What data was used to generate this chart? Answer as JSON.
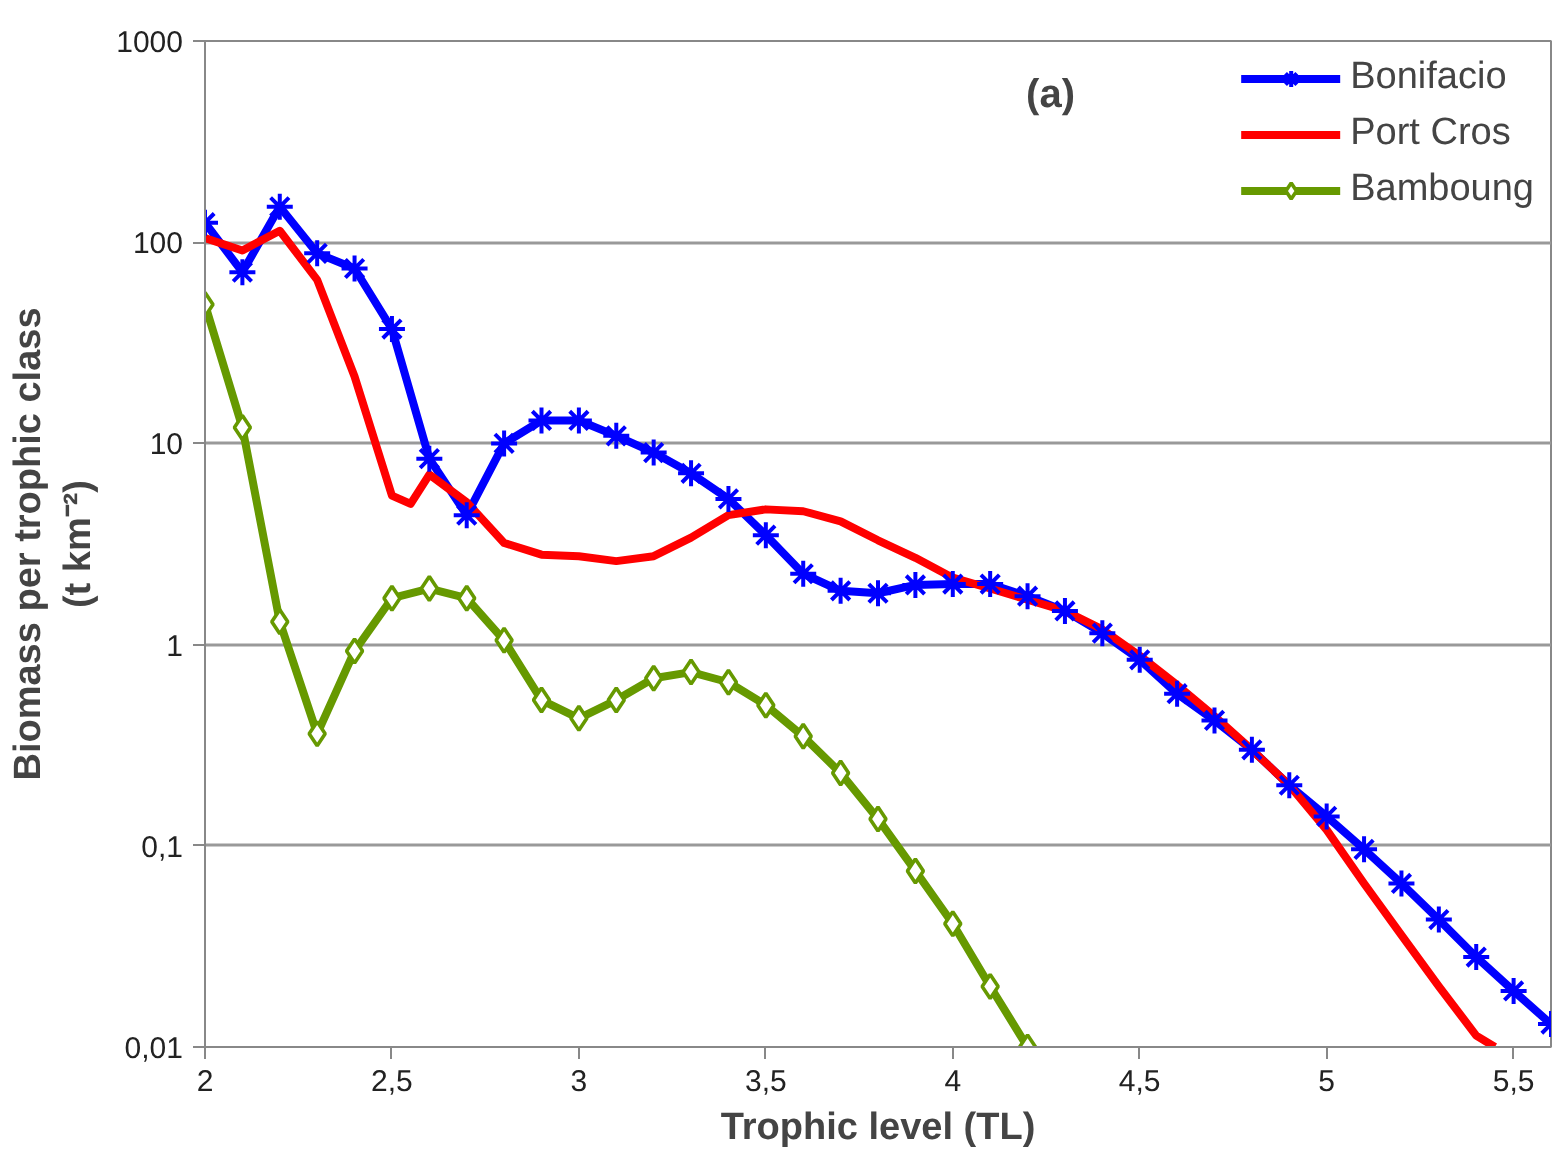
{
  "chart_data": {
    "type": "line",
    "xlabel": "Trophic level (TL)",
    "ylabel": "Biomass per trophic class\n(t km⁻²)",
    "annotations": [
      "(a)"
    ],
    "log": "y",
    "grid": "y",
    "legend": "top right",
    "xlim": [
      2,
      5.6
    ],
    "xticks": [
      2,
      {
        "value": 2.5,
        "label": "2,5"
      },
      3,
      {
        "value": 3.5,
        "label": "3,5"
      },
      4,
      {
        "value": 4.5,
        "label": "4,5"
      },
      5,
      {
        "value": 5.5,
        "label": "5,5"
      }
    ],
    "ylim": [
      0.01,
      1000
    ],
    "yticks": [
      {
        "value": 0.01,
        "label": "0,01"
      },
      {
        "value": 0.1,
        "label": "0,1"
      },
      1,
      10,
      100,
      1000
    ],
    "series": [
      {
        "name": "Bonifacio",
        "color": "#0000ff",
        "marker": "cross",
        "x": [
          2.0,
          2.1,
          2.2,
          2.3,
          2.4,
          2.5,
          2.6,
          2.7,
          2.8,
          2.9,
          3.0,
          3.1,
          3.2,
          3.3,
          3.4,
          3.5,
          3.6,
          3.7,
          3.8,
          3.9,
          4.0,
          4.1,
          4.2,
          4.3,
          4.4,
          4.5,
          4.6,
          4.7,
          4.8,
          4.9,
          5.0,
          5.1,
          5.2,
          5.3,
          5.4,
          5.5,
          5.6
        ],
        "values": [
          125,
          71,
          150,
          88,
          74,
          37,
          8.4,
          4.4,
          10,
          13,
          13,
          10.9,
          9,
          7.1,
          5.3,
          3.5,
          2.25,
          1.85,
          1.8,
          1.98,
          2.0,
          2.0,
          1.74,
          1.47,
          1.14,
          0.84,
          0.57,
          0.42,
          0.3,
          0.2,
          0.14,
          0.096,
          0.065,
          0.043,
          0.028,
          0.019,
          0.013
        ]
      },
      {
        "name": "Port Cros",
        "color": "#ff0000",
        "marker": "none",
        "x": [
          2.0,
          2.1,
          2.2,
          2.3,
          2.4,
          2.5,
          2.55,
          2.6,
          2.7,
          2.8,
          2.9,
          3.0,
          3.1,
          3.2,
          3.3,
          3.4,
          3.5,
          3.6,
          3.7,
          3.8,
          3.9,
          4.0,
          4.1,
          4.2,
          4.3,
          4.4,
          4.5,
          4.6,
          4.7,
          4.8,
          4.9,
          5.0,
          5.1,
          5.2,
          5.3,
          5.4,
          5.45
        ],
        "values": [
          105,
          91,
          114,
          65,
          21.5,
          5.5,
          5,
          7,
          5.1,
          3.2,
          2.8,
          2.75,
          2.6,
          2.75,
          3.4,
          4.4,
          4.7,
          4.6,
          4.1,
          3.3,
          2.7,
          2.15,
          1.9,
          1.67,
          1.47,
          1.19,
          0.88,
          0.63,
          0.44,
          0.3,
          0.2,
          0.12,
          0.065,
          0.036,
          0.02,
          0.0114,
          0.01
        ]
      },
      {
        "name": "Bamboung",
        "color": "#669900",
        "marker": "diamond",
        "x": [
          2.0,
          2.1,
          2.2,
          2.3,
          2.4,
          2.5,
          2.6,
          2.7,
          2.8,
          2.9,
          3.0,
          3.1,
          3.2,
          3.3,
          3.4,
          3.5,
          3.6,
          3.7,
          3.8,
          3.9,
          4.0,
          4.1,
          4.2
        ],
        "values": [
          49,
          12,
          1.3,
          0.36,
          0.93,
          1.7,
          1.9,
          1.7,
          1.05,
          0.53,
          0.43,
          0.53,
          0.68,
          0.73,
          0.65,
          0.5,
          0.35,
          0.23,
          0.136,
          0.075,
          0.041,
          0.02,
          0.01
        ]
      }
    ]
  }
}
